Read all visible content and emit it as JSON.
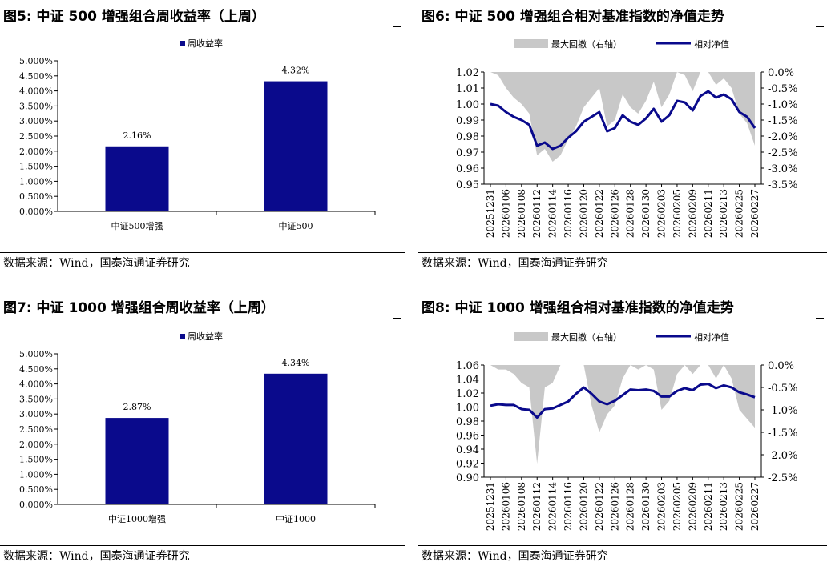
{
  "source_text": "数据来源：Wind，国泰海通证券研究",
  "chart_data": [
    {
      "id": "fig5",
      "type": "bar",
      "title": "图5:  中证 500 增强组合周收益率（上周）",
      "legend": [
        "周收益率"
      ],
      "categories": [
        "中证500增强",
        "中证500"
      ],
      "values": [
        2.16,
        4.32
      ],
      "value_labels": [
        "2.16%",
        "4.32%"
      ],
      "ylim": [
        0,
        5
      ],
      "yticks": [
        "0.000%",
        "0.500%",
        "1.000%",
        "1.500%",
        "2.000%",
        "2.500%",
        "3.000%",
        "3.500%",
        "4.000%",
        "4.500%",
        "5.000%"
      ],
      "bar_color": "#0a0a8c"
    },
    {
      "id": "fig6",
      "type": "line",
      "title": "图6:  中证 500 增强组合相对基准指数的净值走势",
      "legend": [
        "最大回撤（右轴）",
        "相对净值"
      ],
      "x": [
        "20251231",
        "20260105",
        "20260106",
        "20260107",
        "20260108",
        "20260109",
        "20260112",
        "20260113",
        "20260114",
        "20260115",
        "20260116",
        "20260119",
        "20260120",
        "20260121",
        "20260122",
        "20260123",
        "20260126",
        "20260127",
        "20260128",
        "20260129",
        "20260130",
        "20260202",
        "20260203",
        "20260204",
        "20260205",
        "20260206",
        "20260209",
        "20260210",
        "20260211",
        "20260212",
        "20260213",
        "20260224",
        "20260225",
        "20260226",
        "20260227"
      ],
      "xticks": [
        "20251231",
        "20260106",
        "20260108",
        "20260112",
        "20260114",
        "20260116",
        "20260120",
        "20260122",
        "20260126",
        "20260128",
        "20260130",
        "20260203",
        "20260205",
        "20260209",
        "20260211",
        "20260213",
        "20260225",
        "20260227"
      ],
      "y_left": [
        1.0,
        0.999,
        0.995,
        0.992,
        0.99,
        0.987,
        0.974,
        0.976,
        0.972,
        0.974,
        0.979,
        0.983,
        0.989,
        0.992,
        0.995,
        0.983,
        0.985,
        0.993,
        0.989,
        0.987,
        0.991,
        0.997,
        0.989,
        0.993,
        1.002,
        1.001,
        0.996,
        1.005,
        1.008,
        1.004,
        1.006,
        1.003,
        0.995,
        0.992,
        0.985
      ],
      "y_right": [
        0.0,
        -0.1,
        -0.5,
        -0.8,
        -1.0,
        -1.3,
        -2.6,
        -2.4,
        -2.8,
        -2.6,
        -2.1,
        -1.7,
        -1.1,
        -0.8,
        -0.5,
        -1.7,
        -1.5,
        -0.7,
        -1.1,
        -1.3,
        -0.9,
        -0.3,
        -1.1,
        -0.7,
        0.0,
        -0.1,
        -0.6,
        0.0,
        0.0,
        -0.4,
        -0.2,
        -0.5,
        -1.3,
        -1.6,
        -2.3
      ],
      "ylim_left": [
        0.95,
        1.02
      ],
      "ylim_right": [
        -3.5,
        0.0
      ],
      "yticks_left": [
        "0.95",
        "0.96",
        "0.97",
        "0.98",
        "0.99",
        "1.00",
        "1.01",
        "1.02"
      ],
      "yticks_right": [
        "-3.5%",
        "-3.0%",
        "-2.5%",
        "-2.0%",
        "-1.5%",
        "-1.0%",
        "-0.5%",
        "0.0%"
      ],
      "line_color": "#0a0a8c",
      "area_color": "#c8c8c8"
    },
    {
      "id": "fig7",
      "type": "bar",
      "title": "图7:  中证 1000 增强组合周收益率（上周）",
      "legend": [
        "周收益率"
      ],
      "categories": [
        "中证1000增强",
        "中证1000"
      ],
      "values": [
        2.87,
        4.34
      ],
      "value_labels": [
        "2.87%",
        "4.34%"
      ],
      "ylim": [
        0,
        5
      ],
      "yticks": [
        "0.000%",
        "0.500%",
        "1.000%",
        "1.500%",
        "2.000%",
        "2.500%",
        "3.000%",
        "3.500%",
        "4.000%",
        "4.500%",
        "5.000%"
      ],
      "bar_color": "#0a0a8c"
    },
    {
      "id": "fig8",
      "type": "line",
      "title": "图8:  中证 1000 增强组合相对基准指数的净值走势",
      "legend": [
        "最大回撤（右轴）",
        "相对净值"
      ],
      "x": [
        "20251231",
        "20260105",
        "20260106",
        "20260107",
        "20260108",
        "20260109",
        "20260112",
        "20260113",
        "20260114",
        "20260115",
        "20260116",
        "20260119",
        "20260120",
        "20260121",
        "20260122",
        "20260123",
        "20260126",
        "20260127",
        "20260128",
        "20260129",
        "20260130",
        "20260202",
        "20260203",
        "20260204",
        "20260205",
        "20260206",
        "20260209",
        "20260210",
        "20260211",
        "20260212",
        "20260213",
        "20260224",
        "20260225",
        "20260226",
        "20260227"
      ],
      "xticks": [
        "20251231",
        "20260106",
        "20260108",
        "20260112",
        "20260114",
        "20260116",
        "20260120",
        "20260122",
        "20260126",
        "20260128",
        "20260130",
        "20260203",
        "20260205",
        "20260209",
        "20260211",
        "20260213",
        "20260225",
        "20260227"
      ],
      "y_left": [
        1.002,
        1.004,
        1.003,
        1.003,
        0.997,
        0.996,
        0.985,
        0.997,
        0.998,
        1.003,
        1.008,
        1.019,
        1.028,
        1.019,
        1.008,
        1.004,
        1.009,
        1.017,
        1.025,
        1.024,
        1.025,
        1.023,
        1.015,
        1.015,
        1.023,
        1.027,
        1.024,
        1.032,
        1.033,
        1.027,
        1.031,
        1.028,
        1.021,
        1.018,
        1.014
      ],
      "y_right": [
        0.0,
        -0.1,
        -0.1,
        -0.2,
        -0.4,
        -0.5,
        -2.2,
        -0.5,
        -0.4,
        0.0,
        0.0,
        0.0,
        0.0,
        -0.9,
        -1.5,
        -1.1,
        -0.9,
        -0.3,
        0.0,
        -0.1,
        0.0,
        -0.1,
        -1.0,
        -0.8,
        -0.2,
        0.0,
        -0.2,
        0.0,
        0.0,
        -0.3,
        0.0,
        -0.3,
        -1.0,
        -1.2,
        -1.4
      ],
      "ylim_left": [
        0.9,
        1.06
      ],
      "ylim_right": [
        -2.5,
        0.0
      ],
      "yticks_left": [
        "0.90",
        "0.92",
        "0.94",
        "0.96",
        "0.98",
        "1.00",
        "1.02",
        "1.04",
        "1.06"
      ],
      "yticks_right": [
        "-2.5%",
        "-2.0%",
        "-1.5%",
        "-1.0%",
        "-0.5%",
        "0.0%"
      ],
      "line_color": "#0a0a8c",
      "area_color": "#c8c8c8"
    }
  ]
}
